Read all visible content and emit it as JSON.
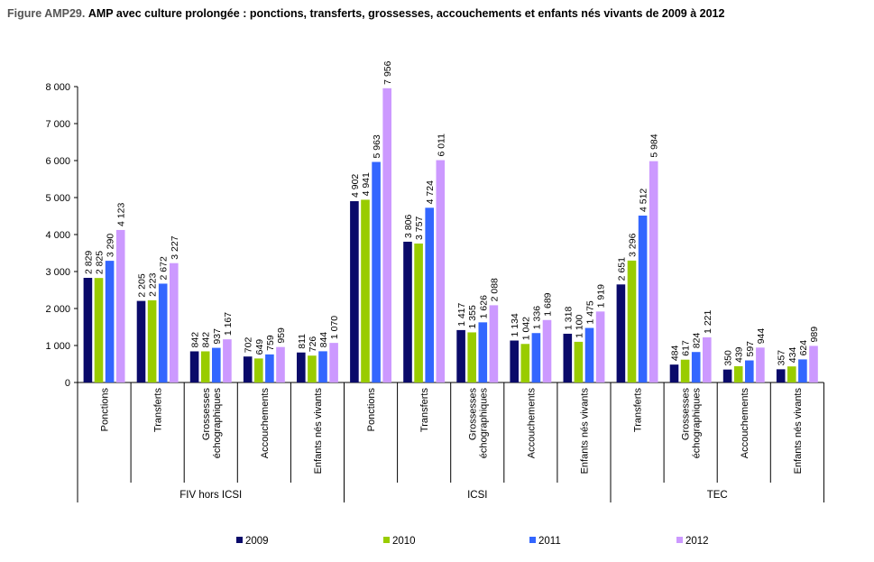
{
  "figure": {
    "label": "Figure AMP29.",
    "title": "AMP avec culture prolongée : ponctions, transferts, grossesses, accouchements et enfants nés vivants de 2009 à 2012"
  },
  "colors": {
    "2009": "#0a0a6a",
    "2010": "#99cc00",
    "2011": "#3366ff",
    "2012": "#cc99ff"
  },
  "chart_data": {
    "type": "bar",
    "ylim": [
      0,
      8000
    ],
    "yticks": [
      0,
      1000,
      2000,
      3000,
      4000,
      5000,
      6000,
      7000,
      8000
    ],
    "ytick_labels": [
      "0",
      "1 000",
      "2 000",
      "3 000",
      "4 000",
      "5 000",
      "6 000",
      "7 000",
      "8 000"
    ],
    "grid": false,
    "legend_position": "bottom",
    "groups": [
      {
        "label": "FIV hors ICSI",
        "categories": [
          "Ponctions",
          "Transferts",
          "Grossesses échographiques",
          "Accouchements",
          "Enfants nés vivants"
        ]
      },
      {
        "label": "ICSI",
        "categories": [
          "Ponctions",
          "Transferts",
          "Grossesses échographiques",
          "Accouchements",
          "Enfants nés vivants"
        ]
      },
      {
        "label": "TEC",
        "categories": [
          "Transferts",
          "Grossesses échographiques",
          "Accouchements",
          "Enfants nés vivants"
        ]
      }
    ],
    "categories": [
      "Ponctions",
      "Transferts",
      "Grossesses échographiques",
      "Accouchements",
      "Enfants nés vivants",
      "Ponctions",
      "Transferts",
      "Grossesses échographiques",
      "Accouchements",
      "Enfants nés vivants",
      "Transferts",
      "Grossesses échographiques",
      "Accouchements",
      "Enfants nés vivants"
    ],
    "series": [
      {
        "name": "2009",
        "values": [
          2829,
          2205,
          842,
          702,
          811,
          4902,
          3806,
          1417,
          1134,
          1318,
          2651,
          484,
          350,
          357
        ],
        "labels": [
          "2 829",
          "2 205",
          "842",
          "702",
          "811",
          "4 902",
          "3 806",
          "1 417",
          "1 134",
          "1 318",
          "2 651",
          "484",
          "350",
          "357"
        ]
      },
      {
        "name": "2010",
        "values": [
          2825,
          2223,
          842,
          649,
          726,
          4941,
          3757,
          1355,
          1042,
          1100,
          3296,
          617,
          439,
          434
        ],
        "labels": [
          "2 825",
          "2 223",
          "842",
          "649",
          "726",
          "4 941",
          "3 757",
          "1 355",
          "1 042",
          "1 100",
          "3 296",
          "617",
          "439",
          "434"
        ]
      },
      {
        "name": "2011",
        "values": [
          3290,
          2672,
          937,
          759,
          844,
          5963,
          4724,
          1626,
          1336,
          1475,
          4512,
          824,
          597,
          624
        ],
        "labels": [
          "3 290",
          "2 672",
          "937",
          "759",
          "844",
          "5 963",
          "4 724",
          "1 626",
          "1 336",
          "1 475",
          "4 512",
          "824",
          "597",
          "624"
        ]
      },
      {
        "name": "2012",
        "values": [
          4123,
          3227,
          1167,
          959,
          1070,
          7956,
          6011,
          2088,
          1689,
          1919,
          5984,
          1221,
          944,
          989
        ],
        "labels": [
          "4 123",
          "3 227",
          "1 167",
          "959",
          "1 070",
          "7 956",
          "6 011",
          "2 088",
          "1 689",
          "1 919",
          "5 984",
          "1 221",
          "944",
          "989"
        ]
      }
    ]
  }
}
